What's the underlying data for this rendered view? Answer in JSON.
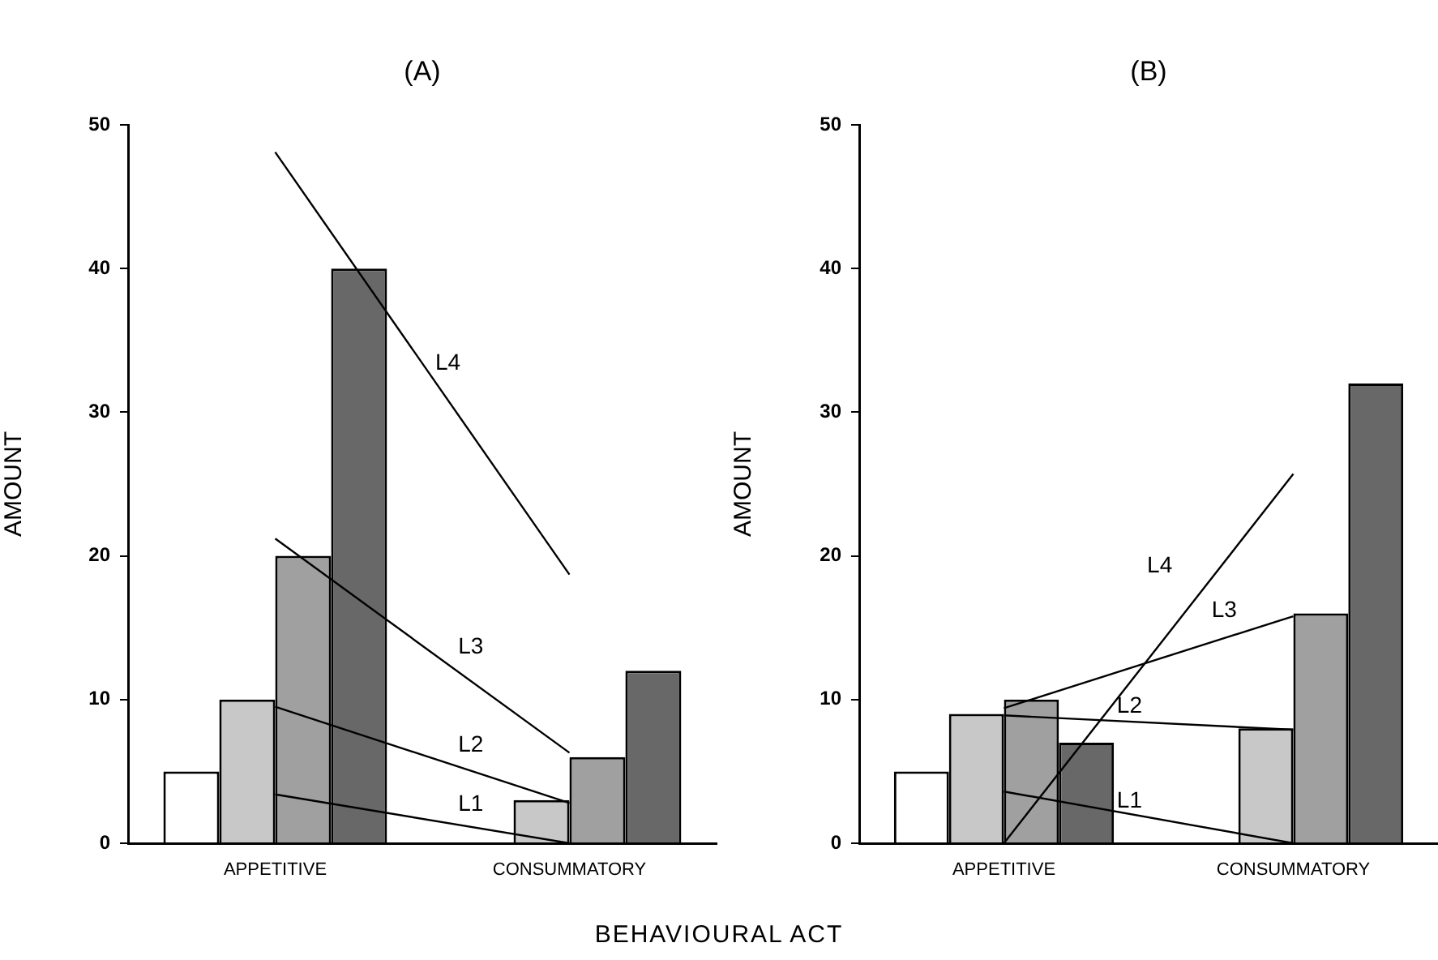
{
  "chart_data": [
    {
      "type": "bar",
      "title": "(A)",
      "xlabel": "BEHAVIOURAL ACT",
      "ylabel": "AMOUNT",
      "categories": [
        "APPETITIVE",
        "CONSUMMATORY"
      ],
      "ylim": [
        0,
        50
      ],
      "yticks": [
        0,
        10,
        20,
        30,
        40,
        50
      ],
      "grid": false,
      "legend": false,
      "series": [
        {
          "color": "#ffffff",
          "values": [
            5,
            0
          ]
        },
        {
          "color": "#c8c8c8",
          "values": [
            10,
            3
          ]
        },
        {
          "color": "#a0a0a0",
          "values": [
            20,
            6
          ]
        },
        {
          "color": "#686868",
          "values": [
            40,
            12
          ]
        },
        {
          "type": "line",
          "name": "L1",
          "color": "#000000",
          "x": [
            "APPETITIVE",
            "CONSUMMATORY"
          ],
          "values": [
            3.4,
            0
          ]
        },
        {
          "type": "line",
          "name": "L2",
          "color": "#000000",
          "x": [
            "APPETITIVE",
            "CONSUMMATORY"
          ],
          "values": [
            9.5,
            2.8
          ]
        },
        {
          "type": "line",
          "name": "L3",
          "color": "#000000",
          "x": [
            "APPETITIVE",
            "CONSUMMATORY"
          ],
          "values": [
            21.2,
            6.3
          ]
        },
        {
          "type": "line",
          "name": "L4",
          "color": "#000000",
          "x": [
            "APPETITIVE",
            "CONSUMMATORY"
          ],
          "values": [
            48.1,
            18.7
          ]
        }
      ]
    },
    {
      "type": "bar",
      "title": "(B)",
      "ylabel": "AMOUNT",
      "categories": [
        "APPETITIVE",
        "CONSUMMATORY"
      ],
      "ylim": [
        0,
        50
      ],
      "yticks": [
        0,
        10,
        20,
        30,
        40,
        50
      ],
      "grid": false,
      "legend": false,
      "series": [
        {
          "color": "#ffffff",
          "values": [
            5,
            0
          ]
        },
        {
          "color": "#c8c8c8",
          "values": [
            9,
            8
          ]
        },
        {
          "color": "#a0a0a0",
          "values": [
            10,
            16
          ]
        },
        {
          "color": "#686868",
          "values": [
            7,
            32
          ]
        },
        {
          "type": "line",
          "name": "L1",
          "color": "#000000",
          "x": [
            "APPETITIVE",
            "CONSUMMATORY"
          ],
          "values": [
            3.6,
            0
          ]
        },
        {
          "type": "line",
          "name": "L2",
          "color": "#000000",
          "x": [
            "APPETITIVE",
            "CONSUMMATORY"
          ],
          "values": [
            8.9,
            7.9
          ]
        },
        {
          "type": "line",
          "name": "L3",
          "color": "#000000",
          "x": [
            "APPETITIVE",
            "CONSUMMATORY"
          ],
          "values": [
            9.4,
            15.8
          ]
        },
        {
          "type": "line",
          "name": "L4",
          "color": "#000000",
          "x": [
            "APPETITIVE",
            "CONSUMMATORY"
          ],
          "values": [
            0,
            25.7
          ]
        }
      ]
    }
  ]
}
